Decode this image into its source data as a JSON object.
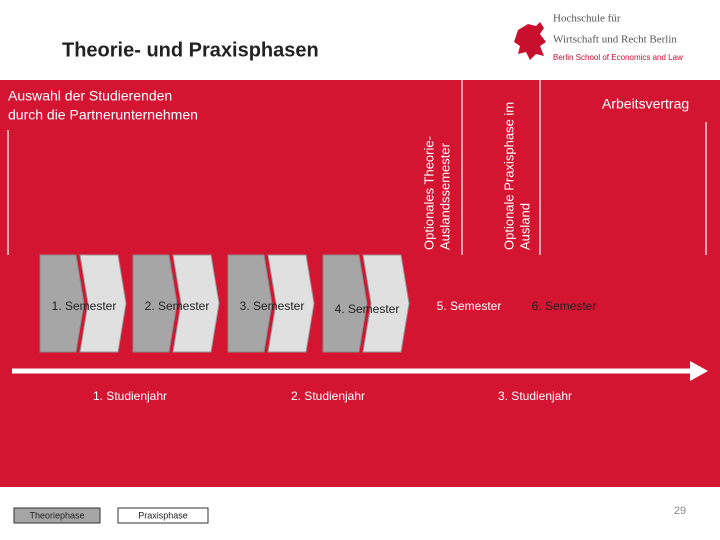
{
  "header": {
    "title": "Theorie- und Praxisphasen"
  },
  "logo": {
    "lines": [
      "Hochschule für",
      "Wirtschaft und Recht Berlin",
      "Berlin School of Economics and Law"
    ]
  },
  "notes": {
    "selection": [
      "Auswahl der Studierenden",
      "durch die Partnerunternehmen"
    ],
    "theory_abroad": [
      "Optionales Theorie-",
      "Auslandssemester"
    ],
    "practice_abroad": [
      "Optionale Praxisphase im",
      "Ausland"
    ],
    "contract": "Arbeitsvertrag"
  },
  "semesters": [
    "1. Semester",
    "2. Semester",
    "3. Semester",
    "4. Semester",
    "5. Semester",
    "6. Semester"
  ],
  "years": [
    "1. Studienjahr",
    "2. Studienjahr",
    "3. Studienjahr"
  ],
  "legend": [
    "Theoriephase",
    "Praxisphase"
  ],
  "page_number": "29"
}
